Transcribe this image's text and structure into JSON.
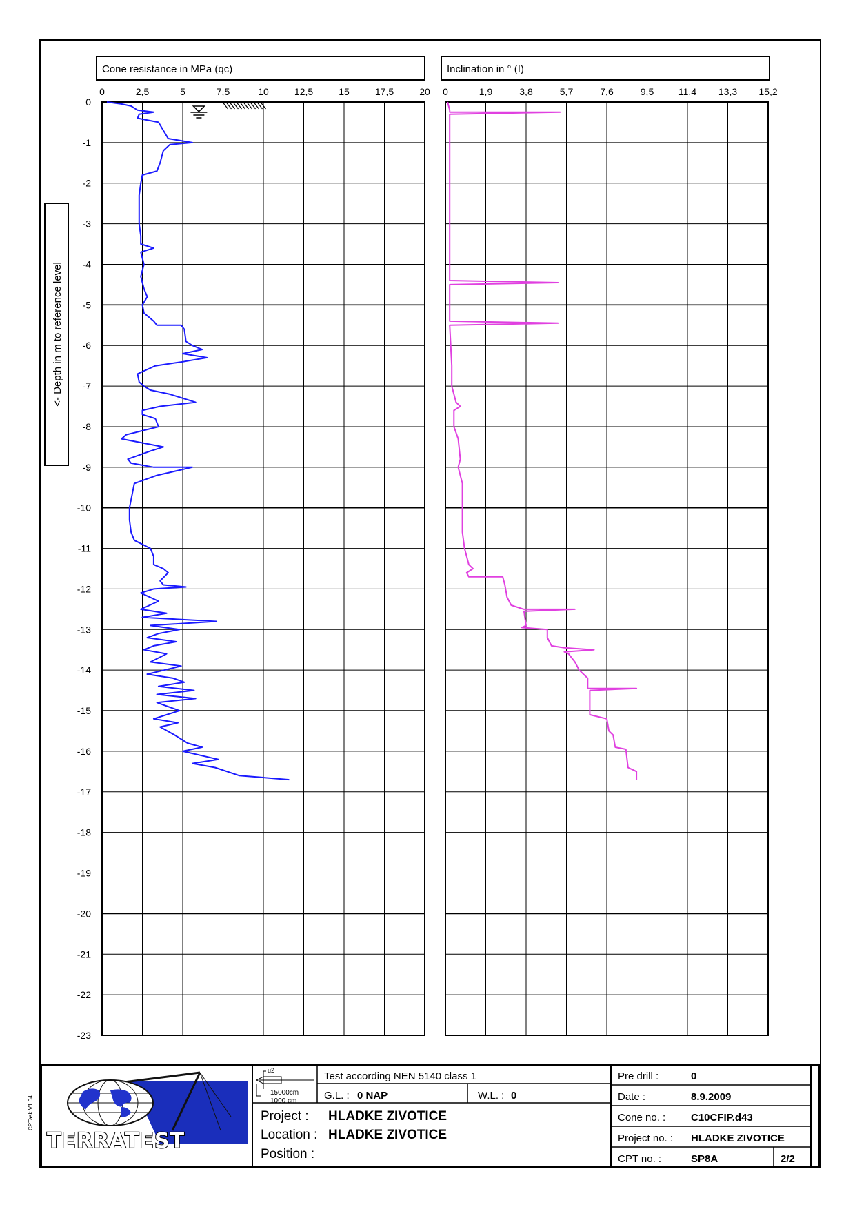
{
  "chart_data": [
    {
      "type": "line",
      "title": "Cone resistance in MPa (qc)",
      "ylabel": "<- Depth in m to reference level",
      "xlim": [
        0,
        20
      ],
      "ylim": [
        -23,
        0
      ],
      "x_ticks": [
        "0",
        "2,5",
        "5",
        "7,5",
        "10",
        "12,5",
        "15",
        "17,5",
        "20"
      ],
      "y_ticks": [
        "0",
        "-1",
        "-2",
        "-3",
        "-4",
        "-5",
        "-6",
        "-7",
        "-8",
        "-9",
        "-10",
        "-11",
        "-12",
        "-13",
        "-14",
        "-15",
        "-16",
        "-17",
        "-18",
        "-19",
        "-20",
        "-21",
        "-22",
        "-23"
      ],
      "grid": true,
      "color": "#1a1aff",
      "series": [
        {
          "points": [
            [
              0.3,
              0.0
            ],
            [
              1.2,
              -0.05
            ],
            [
              1.8,
              -0.1
            ],
            [
              2.2,
              -0.2
            ],
            [
              3.2,
              -0.25
            ],
            [
              2.3,
              -0.3
            ],
            [
              2.2,
              -0.4
            ],
            [
              3.5,
              -0.5
            ],
            [
              3.8,
              -0.7
            ],
            [
              4.1,
              -0.9
            ],
            [
              5.6,
              -1.0
            ],
            [
              4.2,
              -1.05
            ],
            [
              3.8,
              -1.2
            ],
            [
              3.6,
              -1.5
            ],
            [
              3.4,
              -1.7
            ],
            [
              2.5,
              -1.8
            ],
            [
              2.4,
              -2.0
            ],
            [
              2.3,
              -2.3
            ],
            [
              2.3,
              -2.6
            ],
            [
              2.3,
              -3.0
            ],
            [
              2.4,
              -3.3
            ],
            [
              2.4,
              -3.5
            ],
            [
              3.2,
              -3.6
            ],
            [
              2.4,
              -3.7
            ],
            [
              2.6,
              -4.0
            ],
            [
              2.4,
              -4.3
            ],
            [
              2.6,
              -4.6
            ],
            [
              2.8,
              -4.8
            ],
            [
              2.5,
              -5.0
            ],
            [
              2.6,
              -5.2
            ],
            [
              3.2,
              -5.4
            ],
            [
              3.4,
              -5.5
            ],
            [
              4.9,
              -5.5
            ],
            [
              5.1,
              -5.6
            ],
            [
              5.2,
              -5.9
            ],
            [
              5.6,
              -6.0
            ],
            [
              6.2,
              -6.1
            ],
            [
              5.0,
              -6.2
            ],
            [
              6.5,
              -6.3
            ],
            [
              5.0,
              -6.4
            ],
            [
              3.3,
              -6.5
            ],
            [
              2.2,
              -6.7
            ],
            [
              2.3,
              -6.9
            ],
            [
              2.6,
              -7.0
            ],
            [
              3.0,
              -7.1
            ],
            [
              4.2,
              -7.2
            ],
            [
              5.8,
              -7.4
            ],
            [
              3.6,
              -7.5
            ],
            [
              2.5,
              -7.6
            ],
            [
              2.5,
              -7.7
            ],
            [
              3.3,
              -7.8
            ],
            [
              3.5,
              -8.0
            ],
            [
              1.5,
              -8.2
            ],
            [
              1.2,
              -8.3
            ],
            [
              2.5,
              -8.4
            ],
            [
              3.8,
              -8.5
            ],
            [
              3.0,
              -8.6
            ],
            [
              1.6,
              -8.8
            ],
            [
              1.8,
              -8.9
            ],
            [
              3.2,
              -9.0
            ],
            [
              5.6,
              -9.0
            ],
            [
              3.4,
              -9.2
            ],
            [
              2.0,
              -9.4
            ],
            [
              1.9,
              -9.6
            ],
            [
              1.7,
              -10.0
            ],
            [
              1.7,
              -10.3
            ],
            [
              1.8,
              -10.6
            ],
            [
              2.0,
              -10.8
            ],
            [
              3.0,
              -11.0
            ],
            [
              3.2,
              -11.2
            ],
            [
              3.2,
              -11.4
            ],
            [
              3.8,
              -11.5
            ],
            [
              4.1,
              -11.6
            ],
            [
              3.6,
              -11.8
            ],
            [
              3.8,
              -11.9
            ],
            [
              5.2,
              -11.95
            ],
            [
              3.2,
              -12.0
            ],
            [
              2.4,
              -12.1
            ],
            [
              3.5,
              -12.3
            ],
            [
              2.4,
              -12.5
            ],
            [
              4.0,
              -12.6
            ],
            [
              2.5,
              -12.7
            ],
            [
              7.1,
              -12.8
            ],
            [
              3.0,
              -12.9
            ],
            [
              4.8,
              -13.0
            ],
            [
              3.5,
              -13.1
            ],
            [
              2.8,
              -13.2
            ],
            [
              4.6,
              -13.3
            ],
            [
              3.2,
              -13.4
            ],
            [
              2.6,
              -13.5
            ],
            [
              4.0,
              -13.6
            ],
            [
              3.0,
              -13.8
            ],
            [
              4.9,
              -13.9
            ],
            [
              2.8,
              -14.1
            ],
            [
              4.4,
              -14.2
            ],
            [
              5.1,
              -14.3
            ],
            [
              3.5,
              -14.4
            ],
            [
              5.7,
              -14.5
            ],
            [
              3.4,
              -14.6
            ],
            [
              5.8,
              -14.7
            ],
            [
              3.4,
              -14.8
            ],
            [
              4.8,
              -15.0
            ],
            [
              3.2,
              -15.2
            ],
            [
              4.7,
              -15.3
            ],
            [
              3.6,
              -15.4
            ],
            [
              4.5,
              -15.6
            ],
            [
              5.3,
              -15.8
            ],
            [
              6.2,
              -15.9
            ],
            [
              5.0,
              -16.0
            ],
            [
              6.1,
              -16.1
            ],
            [
              7.2,
              -16.2
            ],
            [
              5.6,
              -16.3
            ],
            [
              7.0,
              -16.4
            ],
            [
              8.5,
              -16.6
            ],
            [
              11.6,
              -16.7
            ]
          ]
        }
      ],
      "annotations": {
        "water_level_symbol_at_qc": 6,
        "hatched_top_start_qc": 7.5,
        "hatched_top_end_qc": 10
      }
    },
    {
      "type": "line",
      "title": "Inclination in ° (I)",
      "xlim": [
        0,
        15.2
      ],
      "ylim": [
        -23,
        0
      ],
      "x_ticks": [
        "0",
        "1,9",
        "3,8",
        "5,7",
        "7,6",
        "9,5",
        "11,4",
        "13,3",
        "15,2"
      ],
      "grid": true,
      "color": "#e040e0",
      "series": [
        {
          "points": [
            [
              0.1,
              0.0
            ],
            [
              0.2,
              -0.2
            ],
            [
              0.2,
              -0.25
            ],
            [
              5.4,
              -0.25
            ],
            [
              0.2,
              -0.3
            ],
            [
              0.2,
              -1.0
            ],
            [
              0.2,
              -2.0
            ],
            [
              0.2,
              -3.0
            ],
            [
              0.2,
              -4.0
            ],
            [
              0.2,
              -4.4
            ],
            [
              5.3,
              -4.45
            ],
            [
              0.2,
              -4.5
            ],
            [
              0.2,
              -5.4
            ],
            [
              5.3,
              -5.45
            ],
            [
              0.2,
              -5.5
            ],
            [
              0.3,
              -6.5
            ],
            [
              0.3,
              -7.0
            ],
            [
              0.5,
              -7.4
            ],
            [
              0.7,
              -7.5
            ],
            [
              0.4,
              -7.6
            ],
            [
              0.4,
              -8.0
            ],
            [
              0.6,
              -8.3
            ],
            [
              0.7,
              -8.8
            ],
            [
              0.6,
              -9.0
            ],
            [
              0.8,
              -9.4
            ],
            [
              0.8,
              -10.0
            ],
            [
              0.8,
              -10.6
            ],
            [
              0.9,
              -11.0
            ],
            [
              1.0,
              -11.2
            ],
            [
              1.1,
              -11.4
            ],
            [
              1.3,
              -11.5
            ],
            [
              1.0,
              -11.6
            ],
            [
              1.1,
              -11.7
            ],
            [
              2.7,
              -11.7
            ],
            [
              2.8,
              -11.9
            ],
            [
              2.9,
              -12.2
            ],
            [
              3.1,
              -12.4
            ],
            [
              3.7,
              -12.5
            ],
            [
              6.1,
              -12.5
            ],
            [
              3.7,
              -12.55
            ],
            [
              3.8,
              -12.9
            ],
            [
              3.6,
              -12.95
            ],
            [
              4.8,
              -13.0
            ],
            [
              4.8,
              -13.2
            ],
            [
              5.0,
              -13.4
            ],
            [
              5.6,
              -13.45
            ],
            [
              7.0,
              -13.5
            ],
            [
              5.6,
              -13.55
            ],
            [
              5.8,
              -13.6
            ],
            [
              6.1,
              -13.8
            ],
            [
              6.3,
              -14.0
            ],
            [
              6.7,
              -14.2
            ],
            [
              6.7,
              -14.45
            ],
            [
              9.0,
              -14.45
            ],
            [
              6.8,
              -14.5
            ],
            [
              6.8,
              -15.1
            ],
            [
              7.6,
              -15.2
            ],
            [
              7.7,
              -15.5
            ],
            [
              7.9,
              -15.6
            ],
            [
              8.0,
              -15.9
            ],
            [
              8.5,
              -15.95
            ],
            [
              8.6,
              -16.4
            ],
            [
              9.0,
              -16.5
            ],
            [
              9.0,
              -16.7
            ]
          ]
        }
      ]
    }
  ],
  "footer": {
    "side_code": "CPTask V1.04",
    "logo_text": "TERRATEST",
    "legend_u2": "u2",
    "legend_line1": "15000cm",
    "legend_line2": "1000 cm",
    "test_standard": "Test according NEN 5140 class 1",
    "gl_label": "G.L. :",
    "gl_value": "0 NAP",
    "wl_label": "W.L. :",
    "wl_value": "0",
    "project_label": "Project :",
    "project_value": "HLADKE ZIVOTICE",
    "location_label": "Location :",
    "location_value": "HLADKE ZIVOTICE",
    "position_label": "Position :",
    "position_value": "",
    "predrill_label": "Pre drill :",
    "predrill_value": "0",
    "date_label": "Date :",
    "date_value": "8.9.2009",
    "cone_label": "Cone no. :",
    "cone_value": "C10CFIP.d43",
    "projectno_label": "Project no. :",
    "projectno_value": "HLADKE ZIVOTICE",
    "cpt_label": "CPT no. :",
    "cpt_value": "SP8A",
    "page": "2/2"
  }
}
